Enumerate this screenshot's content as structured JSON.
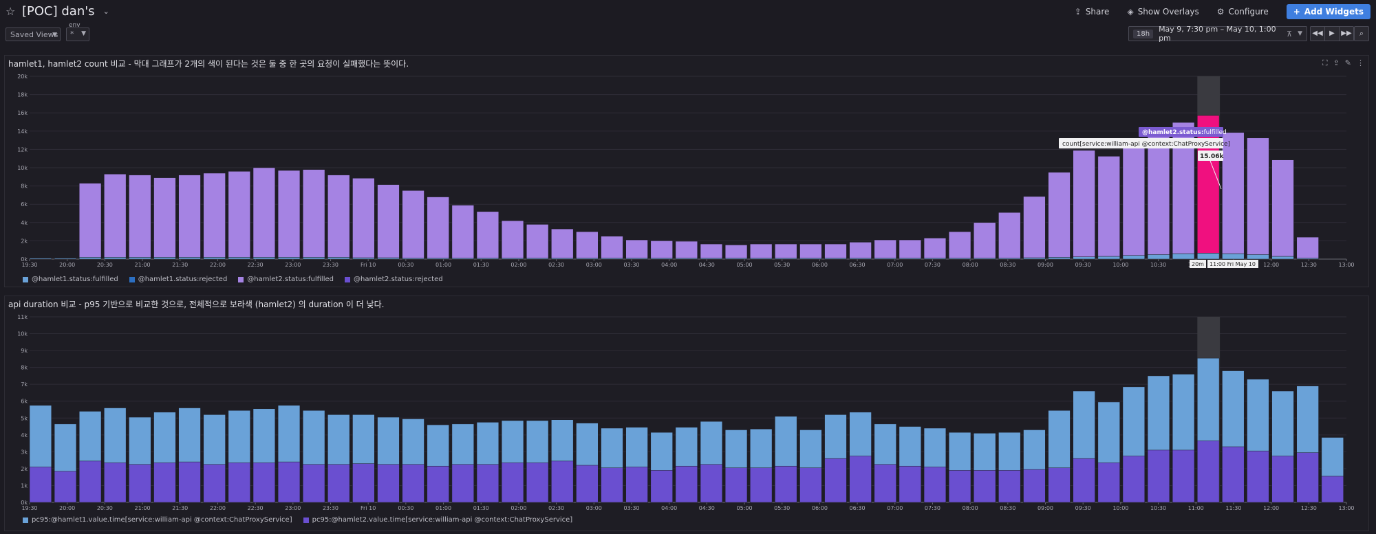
{
  "header": {
    "title": "[POC] dan's",
    "share": "Share",
    "show_overlays": "Show Overlays",
    "configure": "Configure",
    "add_widgets": "Add Widgets",
    "saved_views": "Saved Views",
    "env_label": "env",
    "env_value": "*",
    "time_badge": "18h",
    "time_range": "May 9, 7:30 pm – May 10, 1:00 pm"
  },
  "widgets": [
    {
      "title": "hamlet1, hamlet2 count 비교 - 막대 그래프가 2개의 색이 된다는 것은 둘 중 한 곳의 요청이 실패했다는 뜻이다.",
      "legend": [
        {
          "label": "@hamlet1.status:fulfilled",
          "color": "#6aa2d8"
        },
        {
          "label": "@hamlet1.status:rejected",
          "color": "#2c6fc2"
        },
        {
          "label": "@hamlet2.status:fulfilled",
          "color": "#a583e3"
        },
        {
          "label": "@hamlet2.status:rejected",
          "color": "#6a4fd0"
        }
      ],
      "tooltip": {
        "tag_key": "@hamlet2.status:",
        "tag_val": "fulfilled",
        "query": "count[service:william-api @context:ChatProxyService]",
        "value": "15.06k",
        "x_chip_left": "20m",
        "x_chip_right": "11:00 Fri May 10"
      }
    },
    {
      "title": "api duration 비교 - p95 기반으로 비교한 것으로, 전체적으로 보라색 (hamlet2) 의 duration 이 더 낮다.",
      "legend": [
        {
          "label": "pc95:@hamlet1.value.time[service:william-api @context:ChatProxyService]",
          "color": "#6aa2d8"
        },
        {
          "label": "pc95:@hamlet2.value.time[service:william-api @context:ChatProxyService]",
          "color": "#6a4fd0"
        }
      ]
    }
  ],
  "chart_data": [
    {
      "type": "bar",
      "stacked": true,
      "title": "hamlet1, hamlet2 count 비교 - 막대 그래프가 2개의 색이 된다는 것은 둘 중 한 곳의 요청이 실패했다는 뜻이다.",
      "x_ticks": [
        "19:30",
        "20:00",
        "20:30",
        "21:00",
        "21:30",
        "22:00",
        "22:30",
        "23:00",
        "23:30",
        "Fri 10",
        "00:30",
        "01:00",
        "01:30",
        "02:00",
        "02:30",
        "03:00",
        "03:30",
        "04:00",
        "04:30",
        "05:00",
        "05:30",
        "06:00",
        "06:30",
        "07:00",
        "07:30",
        "08:00",
        "08:30",
        "09:00",
        "09:30",
        "10:00",
        "10:30",
        "11:00",
        "11:30",
        "12:00",
        "12:30",
        "13:00"
      ],
      "y_ticks": [
        "0k",
        "2k",
        "4k",
        "6k",
        "8k",
        "10k",
        "12k",
        "14k",
        "16k",
        "18k",
        "20k"
      ],
      "ylim": [
        0,
        20000
      ],
      "highlight_index": 47,
      "highlight_color": "#f0107f",
      "series": [
        {
          "name": "@hamlet1.status:fulfilled",
          "color": "#6aa2d8",
          "values": [
            100,
            100,
            200,
            200,
            200,
            200,
            200,
            200,
            200,
            200,
            200,
            200,
            200,
            150,
            150,
            100,
            100,
            100,
            100,
            100,
            100,
            100,
            100,
            100,
            100,
            100,
            100,
            100,
            100,
            100,
            100,
            100,
            100,
            100,
            100,
            100,
            100,
            100,
            100,
            100,
            150,
            200,
            250,
            300,
            400,
            500,
            600,
            650,
            600,
            500,
            300,
            100,
            0
          ]
        },
        {
          "name": "@hamlet1.status:rejected",
          "color": "#2c6fc2",
          "values": [
            0,
            0,
            0,
            0,
            0,
            0,
            0,
            0,
            0,
            0,
            0,
            0,
            0,
            0,
            0,
            0,
            0,
            0,
            0,
            0,
            0,
            0,
            0,
            0,
            0,
            0,
            0,
            0,
            0,
            0,
            0,
            0,
            0,
            0,
            0,
            0,
            0,
            0,
            0,
            0,
            0,
            0,
            0,
            0,
            0,
            0,
            0,
            0,
            0,
            0,
            0,
            0,
            0
          ]
        },
        {
          "name": "@hamlet2.status:fulfilled",
          "color": "#a583e3",
          "values": [
            0,
            0,
            8100,
            9100,
            9000,
            8700,
            9000,
            9200,
            9400,
            9800,
            9500,
            9600,
            9000,
            8700,
            8000,
            7400,
            6700,
            5800,
            5100,
            4100,
            3700,
            3200,
            2900,
            2400,
            2000,
            1900,
            1850,
            1550,
            1450,
            1550,
            1550,
            1550,
            1550,
            1750,
            2000,
            2000,
            2200,
            2900,
            3900,
            5000,
            6700,
            9300,
            11650,
            10950,
            12050,
            12900,
            14350,
            15060,
            13250,
            12750,
            10550,
            2300,
            0
          ]
        },
        {
          "name": "@hamlet2.status:rejected",
          "color": "#6a4fd0",
          "values": [
            0,
            0,
            0,
            0,
            0,
            0,
            0,
            0,
            0,
            0,
            0,
            0,
            0,
            0,
            0,
            0,
            0,
            0,
            0,
            0,
            0,
            0,
            0,
            0,
            0,
            0,
            0,
            0,
            0,
            0,
            0,
            0,
            0,
            0,
            0,
            0,
            0,
            0,
            0,
            0,
            0,
            0,
            0,
            0,
            0,
            0,
            0,
            0,
            0,
            0,
            0,
            0,
            0
          ]
        }
      ]
    },
    {
      "type": "bar",
      "stacked": false,
      "title": "api duration 비교 - p95 기반으로 비교한 것으로, 전체적으로 보라색 (hamlet2) 의 duration 이 더 낮다.",
      "x_ticks": [
        "19:30",
        "20:00",
        "20:30",
        "21:00",
        "21:30",
        "22:00",
        "22:30",
        "23:00",
        "23:30",
        "Fri 10",
        "00:30",
        "01:00",
        "01:30",
        "02:00",
        "02:30",
        "03:00",
        "03:30",
        "04:00",
        "04:30",
        "05:00",
        "05:30",
        "06:00",
        "06:30",
        "07:00",
        "07:30",
        "08:00",
        "08:30",
        "09:00",
        "09:30",
        "10:00",
        "10:30",
        "11:00",
        "11:30",
        "12:00",
        "12:30",
        "13:00"
      ],
      "y_ticks": [
        "0k",
        "1k",
        "2k",
        "3k",
        "4k",
        "5k",
        "6k",
        "7k",
        "8k",
        "9k",
        "10k",
        "11k"
      ],
      "ylim": [
        0,
        11000
      ],
      "highlight_index": 47,
      "series": [
        {
          "name": "pc95:@hamlet1.value.time[service:william-api @context:ChatProxyService]",
          "color": "#6aa2d8",
          "values": [
            5750,
            4650,
            5400,
            5600,
            5050,
            5350,
            5600,
            5200,
            5450,
            5550,
            5750,
            5450,
            5200,
            5200,
            5050,
            4950,
            4600,
            4650,
            4750,
            4850,
            4850,
            4900,
            4700,
            4400,
            4450,
            4150,
            4450,
            4800,
            4300,
            4350,
            5100,
            4300,
            5200,
            5350,
            4650,
            4500,
            4400,
            4150,
            4100,
            4150,
            4300,
            5450,
            6600,
            5950,
            6850,
            7500,
            7600,
            8550,
            7800,
            7300,
            6600,
            6900,
            3850
          ]
        },
        {
          "name": "pc95:@hamlet2.value.time[service:william-api @context:ChatProxyService]",
          "color": "#6a4fd0",
          "values": [
            2100,
            1850,
            2450,
            2350,
            2250,
            2350,
            2400,
            2250,
            2350,
            2350,
            2400,
            2250,
            2250,
            2300,
            2250,
            2250,
            2150,
            2250,
            2250,
            2350,
            2350,
            2450,
            2200,
            2050,
            2100,
            1900,
            2150,
            2250,
            2050,
            2050,
            2150,
            2050,
            2600,
            2750,
            2250,
            2150,
            2100,
            1900,
            1900,
            1900,
            1950,
            2050,
            2600,
            2350,
            2750,
            3100,
            3100,
            3650,
            3300,
            3050,
            2750,
            2950,
            1550
          ]
        }
      ]
    }
  ]
}
